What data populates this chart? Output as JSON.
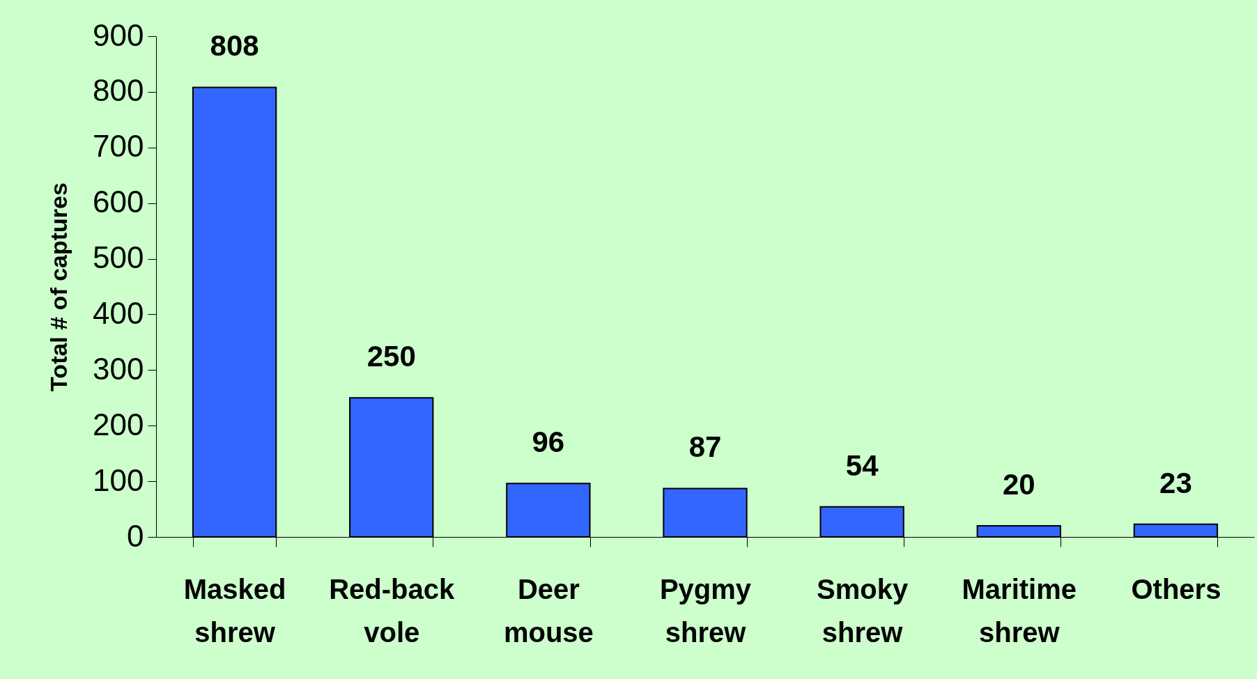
{
  "chart_data": {
    "type": "bar",
    "ylabel": "Total # of captures",
    "categories": [
      "Masked shrew",
      "Red-back vole",
      "Deer mouse",
      "Pygmy shrew",
      "Smoky shrew",
      "Maritime shrew",
      "Others"
    ],
    "values": [
      808,
      250,
      96,
      87,
      54,
      20,
      23
    ],
    "color": "#3366ff",
    "ylim": [
      0,
      900
    ],
    "yticks": [
      0,
      100,
      200,
      300,
      400,
      500,
      600,
      700,
      800,
      900
    ],
    "data_labels": true,
    "grid": false
  }
}
